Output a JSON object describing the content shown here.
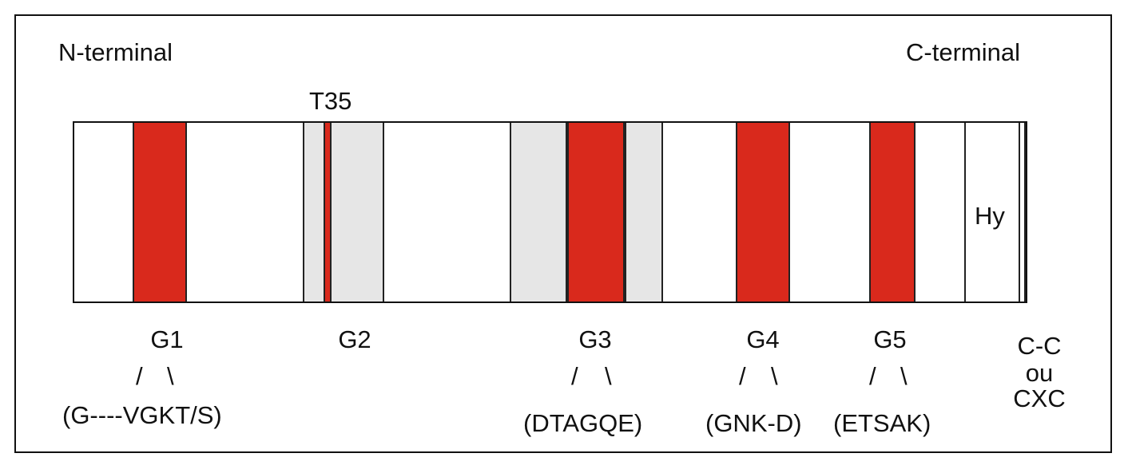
{
  "diagram": {
    "n_terminal": "N-terminal",
    "c_terminal": "C-terminal",
    "t35": "T35",
    "hy": "Hy",
    "slash": "/",
    "backslash": "\\",
    "domains": [
      {
        "name": "G1",
        "motif": "(G----VGKT/S)"
      },
      {
        "name": "G2"
      },
      {
        "name": "G3",
        "motif": "(DTAGQE)"
      },
      {
        "name": "G4",
        "motif": "(GNK-D)"
      },
      {
        "name": "G5",
        "motif": "(ETSAK)"
      }
    ],
    "c_end": {
      "line1": "C-C",
      "line2": "ou",
      "line3": "CXC"
    },
    "colors": {
      "motif": "#d9291c",
      "switch_region": "#e6e6e6",
      "outline": "#111111"
    }
  }
}
